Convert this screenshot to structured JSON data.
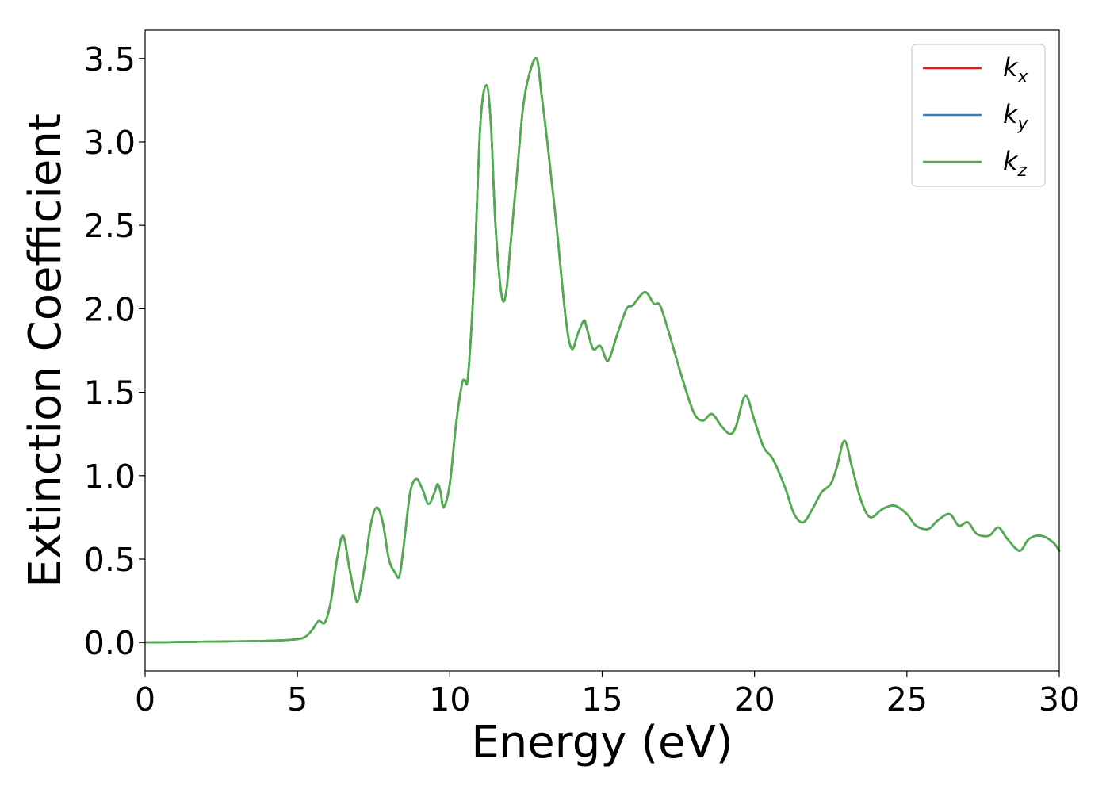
{
  "chart_data": {
    "type": "line",
    "title": "",
    "xlabel": "Energy (eV)",
    "ylabel": "Extinction Coefficient",
    "xlim": [
      0,
      30
    ],
    "ylim": [
      -0.17,
      3.67
    ],
    "grid": false,
    "legend_position": "top-right",
    "x_ticks": [
      "0",
      "5",
      "10",
      "15",
      "20",
      "25",
      "30"
    ],
    "y_ticks": [
      "0.0",
      "0.5",
      "1.0",
      "1.5",
      "2.0",
      "2.5",
      "3.0",
      "3.5"
    ],
    "legend": [
      {
        "base": "k",
        "sub": "x",
        "color": "#e41a1c"
      },
      {
        "base": "k",
        "sub": "y",
        "color": "#377eb8"
      },
      {
        "base": "k",
        "sub": "z",
        "color": "#4daf4a"
      }
    ],
    "x": [
      0,
      2,
      4,
      5.0,
      5.3,
      5.5,
      5.7,
      5.9,
      6.1,
      6.3,
      6.5,
      6.7,
      6.9,
      7.0,
      7.2,
      7.4,
      7.6,
      7.8,
      8.0,
      8.2,
      8.35,
      8.5,
      8.7,
      8.9,
      9.1,
      9.3,
      9.5,
      9.6,
      9.7,
      9.8,
      10.0,
      10.2,
      10.4,
      10.5,
      10.6,
      10.8,
      11.0,
      11.2,
      11.35,
      11.5,
      11.7,
      11.85,
      12.0,
      12.2,
      12.4,
      12.6,
      12.85,
      13.0,
      13.2,
      13.5,
      13.8,
      14.0,
      14.2,
      14.4,
      14.5,
      14.7,
      14.9,
      15.0,
      15.2,
      15.5,
      15.8,
      16.0,
      16.4,
      16.7,
      16.9,
      17.2,
      17.6,
      18.0,
      18.3,
      18.6,
      18.9,
      19.2,
      19.4,
      19.7,
      20.0,
      20.3,
      20.6,
      21.0,
      21.3,
      21.6,
      21.9,
      22.2,
      22.5,
      22.7,
      22.95,
      23.2,
      23.5,
      23.8,
      24.2,
      24.6,
      25.0,
      25.3,
      25.7,
      26.0,
      26.4,
      26.7,
      27.0,
      27.3,
      27.7,
      28.0,
      28.3,
      28.7,
      29.0,
      29.4,
      29.8,
      30.0
    ],
    "series": [
      {
        "name": "kx",
        "color": "#e41a1c",
        "values": [
          0.0,
          0.005,
          0.01,
          0.02,
          0.04,
          0.08,
          0.13,
          0.12,
          0.25,
          0.5,
          0.64,
          0.45,
          0.27,
          0.26,
          0.45,
          0.7,
          0.81,
          0.72,
          0.5,
          0.42,
          0.4,
          0.6,
          0.9,
          0.98,
          0.92,
          0.83,
          0.9,
          0.95,
          0.9,
          0.81,
          0.95,
          1.3,
          1.55,
          1.57,
          1.6,
          2.2,
          3.1,
          3.34,
          3.1,
          2.5,
          2.08,
          2.1,
          2.4,
          2.8,
          3.2,
          3.4,
          3.5,
          3.3,
          3.0,
          2.5,
          1.95,
          1.76,
          1.85,
          1.93,
          1.88,
          1.76,
          1.78,
          1.76,
          1.69,
          1.85,
          2.0,
          2.02,
          2.1,
          2.03,
          2.02,
          1.85,
          1.6,
          1.38,
          1.33,
          1.37,
          1.3,
          1.25,
          1.3,
          1.48,
          1.33,
          1.17,
          1.1,
          0.93,
          0.77,
          0.72,
          0.8,
          0.9,
          0.95,
          1.05,
          1.21,
          1.05,
          0.85,
          0.75,
          0.8,
          0.82,
          0.77,
          0.7,
          0.68,
          0.73,
          0.77,
          0.7,
          0.72,
          0.65,
          0.64,
          0.69,
          0.62,
          0.55,
          0.62,
          0.64,
          0.6,
          0.55
        ]
      },
      {
        "name": "ky",
        "color": "#377eb8",
        "values": [
          0.0,
          0.005,
          0.01,
          0.02,
          0.04,
          0.08,
          0.13,
          0.12,
          0.25,
          0.5,
          0.64,
          0.45,
          0.27,
          0.26,
          0.45,
          0.7,
          0.81,
          0.72,
          0.5,
          0.42,
          0.4,
          0.6,
          0.9,
          0.98,
          0.92,
          0.83,
          0.9,
          0.95,
          0.9,
          0.81,
          0.95,
          1.3,
          1.55,
          1.57,
          1.6,
          2.2,
          3.1,
          3.34,
          3.1,
          2.5,
          2.08,
          2.1,
          2.4,
          2.8,
          3.2,
          3.4,
          3.5,
          3.3,
          3.0,
          2.5,
          1.95,
          1.76,
          1.85,
          1.93,
          1.88,
          1.76,
          1.78,
          1.76,
          1.69,
          1.85,
          2.0,
          2.02,
          2.1,
          2.03,
          2.02,
          1.85,
          1.6,
          1.38,
          1.33,
          1.37,
          1.3,
          1.25,
          1.3,
          1.48,
          1.33,
          1.17,
          1.1,
          0.93,
          0.77,
          0.72,
          0.8,
          0.9,
          0.95,
          1.05,
          1.21,
          1.05,
          0.85,
          0.75,
          0.8,
          0.82,
          0.77,
          0.7,
          0.68,
          0.73,
          0.77,
          0.7,
          0.72,
          0.65,
          0.64,
          0.69,
          0.62,
          0.55,
          0.62,
          0.64,
          0.6,
          0.55
        ]
      },
      {
        "name": "kz",
        "color": "#4daf4a",
        "values": [
          0.0,
          0.005,
          0.01,
          0.02,
          0.04,
          0.08,
          0.13,
          0.12,
          0.25,
          0.5,
          0.64,
          0.45,
          0.27,
          0.26,
          0.45,
          0.7,
          0.81,
          0.72,
          0.5,
          0.42,
          0.4,
          0.6,
          0.9,
          0.98,
          0.92,
          0.83,
          0.9,
          0.95,
          0.9,
          0.81,
          0.95,
          1.3,
          1.55,
          1.57,
          1.6,
          2.2,
          3.1,
          3.34,
          3.1,
          2.5,
          2.08,
          2.1,
          2.4,
          2.8,
          3.2,
          3.4,
          3.5,
          3.3,
          3.0,
          2.5,
          1.95,
          1.76,
          1.85,
          1.93,
          1.88,
          1.76,
          1.78,
          1.76,
          1.69,
          1.85,
          2.0,
          2.02,
          2.1,
          2.03,
          2.02,
          1.85,
          1.6,
          1.38,
          1.33,
          1.37,
          1.3,
          1.25,
          1.3,
          1.48,
          1.33,
          1.17,
          1.1,
          0.93,
          0.77,
          0.72,
          0.8,
          0.9,
          0.95,
          1.05,
          1.21,
          1.05,
          0.85,
          0.75,
          0.8,
          0.82,
          0.77,
          0.7,
          0.68,
          0.73,
          0.77,
          0.7,
          0.72,
          0.65,
          0.64,
          0.69,
          0.62,
          0.55,
          0.62,
          0.64,
          0.6,
          0.55
        ]
      }
    ]
  }
}
